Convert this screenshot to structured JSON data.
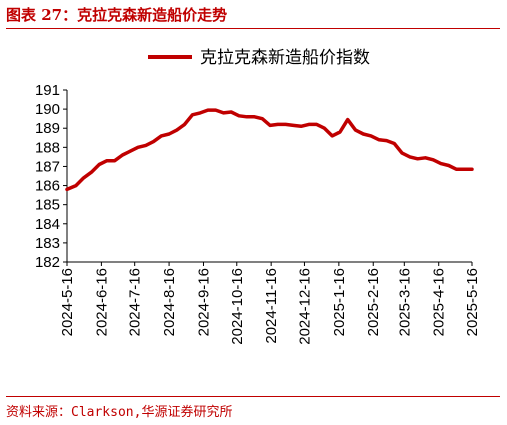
{
  "figure": {
    "title": "图表 27：克拉克森新造船价走势",
    "source": "资料来源：Clarkson,华源证券研究所"
  },
  "chart_data": {
    "type": "line",
    "title": "",
    "xlabel": "",
    "ylabel": "",
    "ylim": [
      182,
      191
    ],
    "yticks": [
      182,
      183,
      184,
      185,
      186,
      187,
      188,
      189,
      190,
      191
    ],
    "xticks": [
      "2024-5-16",
      "2024-6-16",
      "2024-7-16",
      "2024-8-16",
      "2024-9-16",
      "2024-10-16",
      "2024-11-16",
      "2024-12-16",
      "2025-1-16",
      "2025-2-16",
      "2025-3-16",
      "2025-4-16",
      "2025-5-16"
    ],
    "grid": false,
    "legend_position": "top-center",
    "series": [
      {
        "name": "克拉克森新造船价指数",
        "color": "#c00000",
        "x": [
          "2024-5-16",
          "2024-5-24",
          "2024-5-31",
          "2024-6-7",
          "2024-6-14",
          "2024-6-21",
          "2024-6-28",
          "2024-7-5",
          "2024-7-12",
          "2024-7-19",
          "2024-7-26",
          "2024-8-2",
          "2024-8-9",
          "2024-8-16",
          "2024-8-23",
          "2024-8-30",
          "2024-9-6",
          "2024-9-13",
          "2024-9-20",
          "2024-9-27",
          "2024-10-4",
          "2024-10-11",
          "2024-10-18",
          "2024-10-25",
          "2024-11-1",
          "2024-11-8",
          "2024-11-15",
          "2024-11-22",
          "2024-11-29",
          "2024-12-6",
          "2024-12-13",
          "2024-12-20",
          "2024-12-27",
          "2025-1-3",
          "2025-1-10",
          "2025-1-17",
          "2025-1-24",
          "2025-1-31",
          "2025-2-7",
          "2025-2-14",
          "2025-2-21",
          "2025-2-28",
          "2025-3-7",
          "2025-3-14",
          "2025-3-21",
          "2025-3-28",
          "2025-4-4",
          "2025-4-11",
          "2025-4-18",
          "2025-4-25",
          "2025-5-2",
          "2025-5-9",
          "2025-5-16"
        ],
        "values": [
          185.8,
          186.0,
          186.4,
          186.7,
          187.1,
          187.3,
          187.3,
          187.6,
          187.8,
          188.0,
          188.1,
          188.3,
          188.6,
          188.7,
          188.9,
          189.2,
          189.7,
          189.8,
          189.95,
          189.95,
          189.8,
          189.85,
          189.65,
          189.6,
          189.6,
          189.5,
          189.15,
          189.2,
          189.2,
          189.15,
          189.1,
          189.2,
          189.2,
          189.0,
          188.6,
          188.8,
          189.45,
          188.9,
          188.7,
          188.6,
          188.4,
          188.35,
          188.2,
          187.7,
          187.5,
          187.4,
          187.45,
          187.35,
          187.15,
          187.05,
          186.85,
          186.85,
          186.85
        ]
      }
    ]
  }
}
